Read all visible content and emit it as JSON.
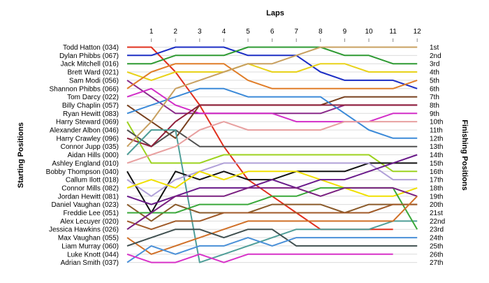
{
  "chart_data": {
    "type": "line",
    "chart_kind": "lap chart (position by lap)",
    "title": "",
    "xlabel": "Laps",
    "ylabel_left": "Starting Positions",
    "ylabel_right": "Finishing Positions",
    "x": [
      0,
      1,
      2,
      3,
      4,
      5,
      6,
      7,
      8,
      9,
      10,
      11,
      12
    ],
    "x_tick_labels": [
      "1",
      "2",
      "3",
      "4",
      "5",
      "6",
      "7",
      "8",
      "9",
      "10",
      "11",
      "12"
    ],
    "y_inverted": true,
    "ylim": [
      1,
      27
    ],
    "grid": "horizontal",
    "finish_labels": [
      "1st",
      "2nd",
      "3rd",
      "4th",
      "5th",
      "6th",
      "7th",
      "8th",
      "9th",
      "10th",
      "11th",
      "12th",
      "13th",
      "14th",
      "15th",
      "16th",
      "17th",
      "18th",
      "19th",
      "20th",
      "21st",
      "22nd",
      "23rd",
      "24th",
      "25th",
      "26th",
      "27th"
    ],
    "series": [
      {
        "name": "Todd Hatton (034)",
        "color": "#e0301e",
        "values": [
          1,
          1,
          4,
          8,
          13,
          17,
          19,
          21,
          23,
          23,
          23,
          23,
          null
        ]
      },
      {
        "name": "Dylan Phibbs (067)",
        "color": "#1c2ec4",
        "values": [
          2,
          2,
          1,
          1,
          1,
          2,
          2,
          2,
          4,
          5,
          5,
          5,
          6
        ]
      },
      {
        "name": "Jack Mitchell (016)",
        "color": "#2e9a32",
        "values": [
          3,
          3,
          2,
          2,
          2,
          1,
          1,
          1,
          1,
          2,
          2,
          3,
          3
        ]
      },
      {
        "name": "Brett Ward (021)",
        "color": "#e8d21a",
        "values": [
          4,
          5,
          4,
          4,
          4,
          3,
          4,
          4,
          3,
          3,
          4,
          4,
          4
        ]
      },
      {
        "name": "Sam Modi (056)",
        "color": "#8a2a8a",
        "values": [
          5,
          7,
          9,
          9,
          9,
          9,
          9,
          9,
          9,
          8,
          8,
          8,
          8
        ]
      },
      {
        "name": "Shannon Phibbs (066)",
        "color": "#e07d28",
        "values": [
          6,
          4,
          3,
          3,
          3,
          5,
          6,
          6,
          6,
          6,
          6,
          6,
          5
        ]
      },
      {
        "name": "Tom Darcy (022)",
        "color": "#d22ec8",
        "values": [
          7,
          6,
          8,
          9,
          9,
          9,
          9,
          10,
          10,
          10,
          10,
          9,
          9
        ]
      },
      {
        "name": "Billy Chaplin (057)",
        "color": "#78401e",
        "values": [
          8,
          10,
          12,
          8,
          8,
          8,
          8,
          8,
          8,
          7,
          7,
          7,
          7
        ]
      },
      {
        "name": "Ryan Hewitt (083)",
        "color": "#3c8ad8",
        "values": [
          9,
          8,
          7,
          6,
          6,
          7,
          7,
          7,
          7,
          9,
          11,
          12,
          12
        ]
      },
      {
        "name": "Harry Steward (069)",
        "color": "#9cd21e",
        "values": [
          10,
          15,
          15,
          15,
          14,
          14,
          14,
          14,
          14,
          14,
          14,
          16,
          16
        ]
      },
      {
        "name": "Alexander Albon (046)",
        "color": "#505050",
        "values": [
          11,
          13,
          11,
          13,
          13,
          13,
          13,
          13,
          13,
          13,
          13,
          13,
          13
        ]
      },
      {
        "name": "Harry Crawley (096)",
        "color": "#8f1f3a",
        "values": [
          12,
          13,
          10,
          8,
          8,
          8,
          8,
          8,
          8,
          8,
          8,
          8,
          8
        ]
      },
      {
        "name": "Aidan Hills (000)",
        "color": "#4f9e98",
        "values": [
          14,
          11,
          11,
          27,
          26,
          25,
          24,
          23,
          23,
          23,
          23,
          22,
          22
        ]
      },
      {
        "name": "Connor Jupp (035)",
        "color": "#c8a060",
        "values": [
          13,
          10,
          6,
          5,
          4,
          3,
          3,
          2,
          1,
          1,
          1,
          1,
          1
        ]
      },
      {
        "name": "Ashley England (010)",
        "color": "#e8a0a0",
        "values": [
          15,
          14,
          13,
          11,
          10,
          11,
          11,
          11,
          11,
          10,
          10,
          10,
          10
        ]
      },
      {
        "name": "Bobby Thompson (040)",
        "color": "#111111",
        "values": [
          16,
          21,
          16,
          17,
          16,
          17,
          17,
          16,
          16,
          16,
          15,
          15,
          15
        ]
      },
      {
        "name": "Callum Ilott (018)",
        "color": "#b0a0d8",
        "values": [
          17,
          19,
          17,
          16,
          15,
          15,
          15,
          15,
          15,
          15,
          15,
          17,
          17
        ]
      },
      {
        "name": "Connor Mills (082)",
        "color": "#f0e000",
        "values": [
          18,
          17,
          18,
          16,
          17,
          16,
          16,
          16,
          17,
          18,
          19,
          19,
          18
        ]
      },
      {
        "name": "Jordan Hewitt (081)",
        "color": "#6a1a8a",
        "values": [
          19,
          20,
          19,
          18,
          18,
          18,
          17,
          18,
          17,
          17,
          16,
          15,
          14
        ]
      },
      {
        "name": "Daniel Vaughan (023)",
        "color": "#8a5a2a",
        "values": [
          20,
          22,
          20,
          21,
          21,
          21,
          20,
          20,
          20,
          21,
          20,
          20,
          20
        ]
      },
      {
        "name": "Freddie Lee (051)",
        "color": "#3aa83a",
        "values": [
          21,
          21,
          21,
          20,
          20,
          20,
          19,
          19,
          18,
          18,
          18,
          18,
          23
        ]
      },
      {
        "name": "Alex Lecuyer (020)",
        "color": "#a05a28",
        "values": [
          22,
          23,
          22,
          22,
          21,
          21,
          21,
          21,
          21,
          21,
          21,
          20,
          20
        ]
      },
      {
        "name": "Jessica Hawkins (026)",
        "color": "#7a2080",
        "values": [
          23,
          21,
          19,
          19,
          19,
          18,
          18,
          18,
          19,
          18,
          18,
          18,
          19
        ]
      },
      {
        "name": "Max Vaughan (055)",
        "color": "#d07028",
        "values": [
          24,
          26,
          25,
          24,
          23,
          22,
          22,
          22,
          22,
          22,
          22,
          22,
          19
        ]
      },
      {
        "name": "Liam Murray (060)",
        "color": "#405050",
        "values": [
          25,
          24,
          23,
          23,
          24,
          23,
          23,
          25,
          25,
          25,
          25,
          25,
          25
        ]
      },
      {
        "name": "Adrian Smith (037)",
        "color": "#4a90d8",
        "values": [
          27,
          25,
          26,
          25,
          25,
          24,
          25,
          24,
          24,
          24,
          24,
          24,
          24
        ]
      },
      {
        "name": "Luke Knott (044)",
        "color": "#d832c8",
        "values": [
          26,
          27,
          27,
          26,
          27,
          26,
          26,
          26,
          26,
          26,
          26,
          26,
          null
        ]
      }
    ]
  }
}
